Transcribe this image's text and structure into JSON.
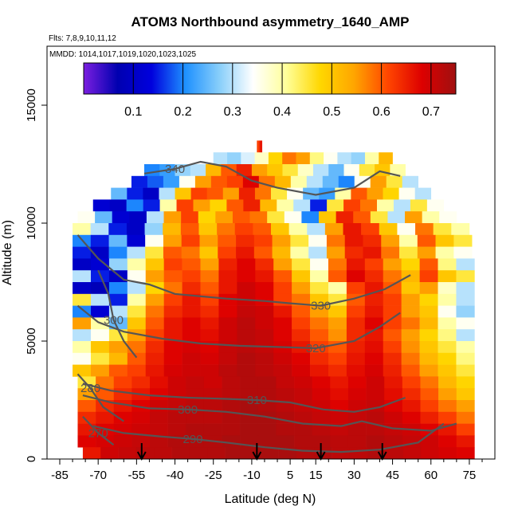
{
  "chart_data": {
    "type": "heatmap",
    "title": "ATOM3 Northbound asymmetry_1640_AMP",
    "flights_label": "Flts: 7,8,9,10,11,12",
    "mmdd_label": "MMDD: 1014,1017,1019,1020,1023,1025",
    "xlabel": "Latitude (deg N)",
    "ylabel": "Altitude (m)",
    "xlim": [
      -85,
      80
    ],
    "ylim": [
      0,
      17500
    ],
    "x_ticks": [
      -85,
      -70,
      -55,
      -40,
      -25,
      -10,
      5,
      15,
      30,
      45,
      60,
      75
    ],
    "x_ticklabels": [
      "-85",
      "-70",
      "-55",
      "-40",
      "-25",
      "-10",
      "5",
      "15",
      "30",
      "45",
      "60",
      "75"
    ],
    "y_ticks": [
      0,
      5000,
      10000,
      15000
    ],
    "y_ticklabels": [
      "0",
      "5000",
      "10000",
      "15000"
    ],
    "colorbar": {
      "range": [
        0.0,
        0.75
      ],
      "ticks": [
        0.1,
        0.2,
        0.3,
        0.4,
        0.5,
        0.6,
        0.7
      ],
      "ticklabels": [
        "0.1",
        "0.2",
        "0.3",
        "0.4",
        "0.5",
        "0.6",
        "0.7"
      ],
      "colors": [
        "#7b1fe0",
        "#0000b0",
        "#0000dd",
        "#1e90ff",
        "#87cefa",
        "#ffffff",
        "#ffff99",
        "#ffd700",
        "#ffa500",
        "#ff4500",
        "#dd0000",
        "#a01010"
      ]
    },
    "heatmap_rows": [
      {
        "alt": 13250,
        "lat_range": [
          -8,
          -6
        ],
        "values": [
          0.62,
          0.66
        ]
      },
      {
        "alt": 12750,
        "lat_range": [
          -25,
          45
        ],
        "values": [
          0.3,
          0.28,
          0.32,
          0.38,
          0.48,
          0.58,
          0.55,
          0.42,
          0.35,
          0.3,
          0.28,
          0.4,
          0.52
        ]
      },
      {
        "alt": 12250,
        "lat_range": [
          -52,
          50
        ],
        "values": [
          0.2,
          0.22,
          0.28,
          0.3,
          0.52,
          0.6,
          0.65,
          0.55,
          0.5,
          0.45,
          0.38,
          0.3,
          0.25,
          0.35,
          0.45,
          0.5,
          0.4
        ]
      },
      {
        "alt": 11750,
        "lat_range": [
          -57,
          55
        ],
        "values": [
          0.15,
          0.18,
          0.22,
          0.35,
          0.55,
          0.6,
          0.62,
          0.68,
          0.58,
          0.52,
          0.4,
          0.3,
          0.25,
          0.2,
          0.35,
          0.55,
          0.45,
          0.3
        ]
      },
      {
        "alt": 11250,
        "lat_range": [
          -65,
          60
        ],
        "values": [
          0.25,
          0.15,
          0.1,
          0.3,
          0.5,
          0.62,
          0.6,
          0.55,
          0.65,
          0.58,
          0.45,
          0.35,
          0.25,
          0.22,
          0.4,
          0.6,
          0.55,
          0.48,
          0.35,
          0.3
        ]
      },
      {
        "alt": 10750,
        "lat_range": [
          -72,
          65
        ],
        "values": [
          0.12,
          0.1,
          0.2,
          0.15,
          0.4,
          0.62,
          0.55,
          0.48,
          0.6,
          0.65,
          0.52,
          0.4,
          0.3,
          0.15,
          0.45,
          0.62,
          0.58,
          0.4,
          0.3,
          0.45,
          0.35
        ]
      },
      {
        "alt": 10250,
        "lat_range": [
          -78,
          70
        ],
        "values": [
          0.35,
          0.25,
          0.12,
          0.1,
          0.3,
          0.55,
          0.62,
          0.48,
          0.55,
          0.6,
          0.58,
          0.45,
          0.35,
          0.2,
          0.5,
          0.65,
          0.6,
          0.45,
          0.3,
          0.55,
          0.4,
          0.35
        ]
      },
      {
        "alt": 9750,
        "lat_range": [
          -80,
          75
        ],
        "values": [
          0.4,
          0.3,
          0.15,
          0.1,
          0.28,
          0.52,
          0.6,
          0.5,
          0.58,
          0.62,
          0.6,
          0.5,
          0.4,
          0.3,
          0.55,
          0.66,
          0.62,
          0.5,
          0.35,
          0.58,
          0.45,
          0.4
        ]
      },
      {
        "alt": 9250,
        "lat_range": [
          -80,
          76
        ],
        "values": [
          0.2,
          0.15,
          0.25,
          0.12,
          0.35,
          0.55,
          0.62,
          0.55,
          0.6,
          0.64,
          0.62,
          0.55,
          0.45,
          0.35,
          0.58,
          0.66,
          0.64,
          0.55,
          0.4,
          0.6,
          0.5,
          0.45
        ]
      },
      {
        "alt": 8750,
        "lat_range": [
          -80,
          76
        ],
        "values": [
          0.15,
          0.1,
          0.2,
          0.3,
          0.45,
          0.6,
          0.58,
          0.5,
          0.62,
          0.66,
          0.6,
          0.52,
          0.4,
          0.3,
          0.55,
          0.64,
          0.66,
          0.58,
          0.45,
          0.55,
          0.4,
          0.35
        ]
      },
      {
        "alt": 8250,
        "lat_range": [
          -80,
          77
        ],
        "values": [
          0.1,
          0.12,
          0.28,
          0.4,
          0.5,
          0.62,
          0.6,
          0.55,
          0.65,
          0.68,
          0.64,
          0.55,
          0.45,
          0.35,
          0.58,
          0.66,
          0.62,
          0.55,
          0.48,
          0.6,
          0.42,
          0.3
        ]
      },
      {
        "alt": 7750,
        "lat_range": [
          -80,
          77
        ],
        "values": [
          0.3,
          0.15,
          0.1,
          0.35,
          0.55,
          0.6,
          0.62,
          0.58,
          0.66,
          0.68,
          0.66,
          0.6,
          0.5,
          0.4,
          0.6,
          0.68,
          0.64,
          0.58,
          0.52,
          0.62,
          0.5,
          0.45
        ]
      },
      {
        "alt": 7250,
        "lat_range": [
          -80,
          77
        ],
        "values": [
          0.1,
          0.08,
          0.2,
          0.3,
          0.48,
          0.58,
          0.64,
          0.6,
          0.66,
          0.7,
          0.68,
          0.62,
          0.55,
          0.45,
          0.4,
          0.62,
          0.66,
          0.6,
          0.5,
          0.55,
          0.38,
          0.3
        ]
      },
      {
        "alt": 6750,
        "lat_range": [
          -80,
          77
        ],
        "values": [
          0.45,
          0.3,
          0.15,
          0.4,
          0.55,
          0.62,
          0.66,
          0.62,
          0.68,
          0.7,
          0.68,
          0.62,
          0.58,
          0.5,
          0.45,
          0.6,
          0.65,
          0.62,
          0.55,
          0.48,
          0.4,
          0.3
        ]
      },
      {
        "alt": 6250,
        "lat_range": [
          -80,
          77
        ],
        "values": [
          0.2,
          0.12,
          0.3,
          0.45,
          0.58,
          0.64,
          0.66,
          0.64,
          0.68,
          0.71,
          0.7,
          0.66,
          0.6,
          0.55,
          0.5,
          0.62,
          0.66,
          0.62,
          0.55,
          0.5,
          0.35,
          0.28
        ]
      },
      {
        "alt": 5750,
        "lat_range": [
          -80,
          77
        ],
        "values": [
          0.55,
          0.4,
          0.25,
          0.5,
          0.6,
          0.66,
          0.68,
          0.66,
          0.7,
          0.72,
          0.7,
          0.68,
          0.62,
          0.58,
          0.55,
          0.64,
          0.68,
          0.62,
          0.58,
          0.52,
          0.4,
          0.35
        ]
      },
      {
        "alt": 5250,
        "lat_range": [
          -80,
          77
        ],
        "values": [
          0.3,
          0.35,
          0.45,
          0.55,
          0.62,
          0.66,
          0.68,
          0.67,
          0.7,
          0.72,
          0.71,
          0.68,
          0.64,
          0.6,
          0.56,
          0.64,
          0.66,
          0.6,
          0.55,
          0.48,
          0.42,
          0.3
        ]
      },
      {
        "alt": 4750,
        "lat_range": [
          -80,
          77
        ],
        "values": [
          0.4,
          0.5,
          0.55,
          0.58,
          0.64,
          0.68,
          0.69,
          0.68,
          0.71,
          0.72,
          0.71,
          0.69,
          0.66,
          0.62,
          0.6,
          0.65,
          0.67,
          0.62,
          0.56,
          0.5,
          0.45,
          0.4
        ]
      },
      {
        "alt": 4250,
        "lat_range": [
          -80,
          77
        ],
        "values": [
          0.35,
          0.45,
          0.52,
          0.6,
          0.65,
          0.68,
          0.7,
          0.69,
          0.71,
          0.73,
          0.72,
          0.7,
          0.68,
          0.64,
          0.62,
          0.66,
          0.68,
          0.64,
          0.58,
          0.52,
          0.48,
          0.42
        ]
      },
      {
        "alt": 3750,
        "lat_range": [
          -80,
          77
        ],
        "values": [
          0.5,
          0.55,
          0.6,
          0.62,
          0.66,
          0.69,
          0.7,
          0.7,
          0.72,
          0.73,
          0.72,
          0.71,
          0.69,
          0.66,
          0.64,
          0.67,
          0.69,
          0.65,
          0.6,
          0.55,
          0.5,
          0.45
        ]
      },
      {
        "alt": 3250,
        "lat_range": [
          -78,
          77
        ],
        "values": [
          0.45,
          0.58,
          0.62,
          0.64,
          0.67,
          0.7,
          0.71,
          0.7,
          0.72,
          0.73,
          0.73,
          0.71,
          0.7,
          0.68,
          0.66,
          0.68,
          0.7,
          0.66,
          0.62,
          0.58,
          0.52,
          0.48
        ]
      },
      {
        "alt": 2750,
        "lat_range": [
          -78,
          77
        ],
        "values": [
          0.55,
          0.6,
          0.64,
          0.66,
          0.68,
          0.7,
          0.71,
          0.71,
          0.72,
          0.73,
          0.73,
          0.72,
          0.71,
          0.69,
          0.67,
          0.69,
          0.7,
          0.67,
          0.64,
          0.6,
          0.55,
          0.5
        ]
      },
      {
        "alt": 2250,
        "lat_range": [
          -78,
          77
        ],
        "values": [
          0.6,
          0.64,
          0.66,
          0.68,
          0.7,
          0.71,
          0.72,
          0.72,
          0.73,
          0.74,
          0.73,
          0.72,
          0.71,
          0.7,
          0.68,
          0.7,
          0.71,
          0.68,
          0.66,
          0.62,
          0.58,
          0.55
        ]
      },
      {
        "alt": 1750,
        "lat_range": [
          -78,
          77
        ],
        "values": [
          0.64,
          0.66,
          0.68,
          0.69,
          0.71,
          0.72,
          0.72,
          0.72,
          0.73,
          0.74,
          0.74,
          0.73,
          0.72,
          0.71,
          0.7,
          0.71,
          0.72,
          0.7,
          0.68,
          0.65,
          0.62,
          0.58
        ]
      },
      {
        "alt": 1250,
        "lat_range": [
          -78,
          77
        ],
        "values": [
          0.66,
          0.68,
          0.69,
          0.7,
          0.71,
          0.72,
          0.73,
          0.73,
          0.73,
          0.74,
          0.74,
          0.73,
          0.73,
          0.72,
          0.71,
          0.72,
          0.72,
          0.71,
          0.7,
          0.68,
          0.66,
          0.62
        ]
      },
      {
        "alt": 750,
        "lat_range": [
          -78,
          77
        ],
        "values": [
          0.68,
          0.69,
          0.7,
          0.71,
          0.72,
          0.73,
          0.73,
          0.73,
          0.74,
          0.74,
          0.74,
          0.74,
          0.73,
          0.73,
          0.72,
          0.72,
          0.73,
          0.72,
          0.71,
          0.7,
          0.68,
          0.66
        ]
      },
      {
        "alt": 250,
        "lat_range": [
          -76,
          77
        ],
        "values": [
          0.66,
          0.7,
          0.71,
          0.72,
          0.72,
          0.73,
          0.73,
          0.73,
          0.74,
          0.74,
          0.74,
          0.74,
          0.73,
          0.73,
          0.72,
          0.72,
          0.73,
          0.72,
          0.71,
          0.7,
          0.69,
          0.68
        ]
      }
    ],
    "contours": [
      {
        "level": 340,
        "label": "340",
        "label_at": [
          -40,
          12300
        ],
        "points": [
          [
            -52,
            12100
          ],
          [
            -40,
            12300
          ],
          [
            -30,
            12600
          ],
          [
            -20,
            12400
          ],
          [
            -10,
            11800
          ],
          [
            0,
            11500
          ],
          [
            15,
            11200
          ],
          [
            30,
            11500
          ],
          [
            40,
            12200
          ],
          [
            48,
            12000
          ]
        ]
      },
      {
        "level": 330,
        "label": "330",
        "label_at": [
          17,
          6500
        ],
        "points": [
          [
            -78,
            9500
          ],
          [
            -70,
            8500
          ],
          [
            -60,
            7600
          ],
          [
            -50,
            7400
          ],
          [
            -40,
            7000
          ],
          [
            -30,
            6900
          ],
          [
            -20,
            6800
          ],
          [
            -5,
            6700
          ],
          [
            5,
            6600
          ],
          [
            17,
            6500
          ],
          [
            30,
            6800
          ],
          [
            42,
            7200
          ],
          [
            52,
            7800
          ]
        ]
      },
      {
        "level": 320,
        "label": "320",
        "label_at": [
          15,
          4700
        ],
        "points": [
          [
            -78,
            6500
          ],
          [
            -70,
            5800
          ],
          [
            -60,
            5400
          ],
          [
            -45,
            5100
          ],
          [
            -30,
            4900
          ],
          [
            -15,
            4800
          ],
          [
            0,
            4750
          ],
          [
            15,
            4700
          ],
          [
            30,
            5000
          ],
          [
            40,
            5600
          ],
          [
            48,
            6200
          ]
        ]
      },
      {
        "level": 310,
        "label": "310",
        "label_at": [
          -8,
          2500
        ],
        "points": [
          [
            -76,
            3200
          ],
          [
            -65,
            2900
          ],
          [
            -50,
            2700
          ],
          [
            -35,
            2600
          ],
          [
            -20,
            2550
          ],
          [
            -8,
            2500
          ],
          [
            5,
            2400
          ],
          [
            18,
            2100
          ],
          [
            30,
            2000
          ],
          [
            40,
            2200
          ],
          [
            50,
            2600
          ]
        ]
      },
      {
        "level": 300,
        "label": "300",
        "label_at": [
          -35,
          2100
        ],
        "points": [
          [
            -76,
            2700
          ],
          [
            -65,
            2400
          ],
          [
            -50,
            2150
          ],
          [
            -35,
            2100
          ],
          [
            -20,
            2000
          ],
          [
            -5,
            1800
          ],
          [
            10,
            1500
          ],
          [
            25,
            1400
          ],
          [
            33,
            1600
          ],
          [
            45,
            1300
          ],
          [
            60,
            1200
          ],
          [
            70,
            1500
          ]
        ]
      },
      {
        "level": 290,
        "label": "290",
        "label_at": [
          -33,
          850
        ],
        "points": [
          [
            -72,
            1400
          ],
          [
            -60,
            1100
          ],
          [
            -45,
            950
          ],
          [
            -33,
            850
          ],
          [
            -20,
            700
          ],
          [
            -5,
            500
          ],
          [
            10,
            350
          ],
          [
            25,
            300
          ],
          [
            40,
            400
          ],
          [
            55,
            700
          ],
          [
            65,
            1500
          ]
        ]
      },
      {
        "level": 280,
        "label": "280",
        "label_at": [
          -73,
          3000
        ],
        "points": [
          [
            -78,
            3600
          ],
          [
            -73,
            3000
          ],
          [
            -68,
            2200
          ],
          [
            -60,
            1600
          ]
        ]
      },
      {
        "level": 270,
        "label": "270",
        "label_at": [
          -70,
          1100
        ],
        "points": [
          [
            -76,
            1800
          ],
          [
            -70,
            1100
          ],
          [
            -64,
            600
          ]
        ]
      },
      {
        "level": 300,
        "label": "300",
        "label_at": [
          -64,
          5900
        ],
        "points": [
          [
            -70,
            8000
          ],
          [
            -66,
            7000
          ],
          [
            -64,
            5900
          ],
          [
            -60,
            5000
          ],
          [
            -55,
            4300
          ]
        ]
      }
    ],
    "flight_arrows_lat": [
      -53,
      -8,
      17,
      41
    ],
    "grid": false,
    "legend": "colorbar-top"
  }
}
